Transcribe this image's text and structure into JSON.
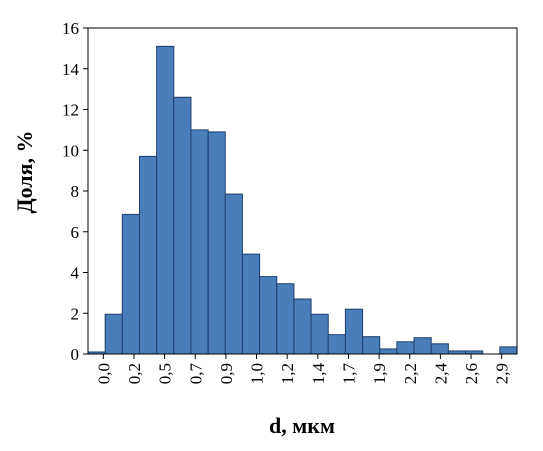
{
  "chart_data": {
    "type": "bar",
    "xlabel": "d, мкм",
    "ylabel": "Доля, %",
    "ylim": [
      0,
      16
    ],
    "yticks": [
      "0",
      "2",
      "4",
      "6",
      "8",
      "10",
      "12",
      "14",
      "16"
    ],
    "xtick_labels": [
      "0,0",
      "0,2",
      "0,5",
      "0,7",
      "0,9",
      "1,0",
      "1,2",
      "1,4",
      "1,7",
      "1,9",
      "2,2",
      "2,4",
      "2,6",
      "2,9"
    ],
    "values": [
      0.1,
      1.95,
      6.85,
      9.7,
      15.1,
      12.6,
      11.0,
      10.9,
      7.85,
      4.9,
      3.8,
      3.45,
      2.7,
      1.95,
      0.95,
      2.2,
      0.85,
      0.25,
      0.6,
      0.8,
      0.5,
      0.15,
      0.15,
      0.0,
      0.35
    ],
    "grid": false,
    "legend": "none",
    "bar_color": "#4a7ebb",
    "bar_edge_color": "#1f3f6e"
  }
}
